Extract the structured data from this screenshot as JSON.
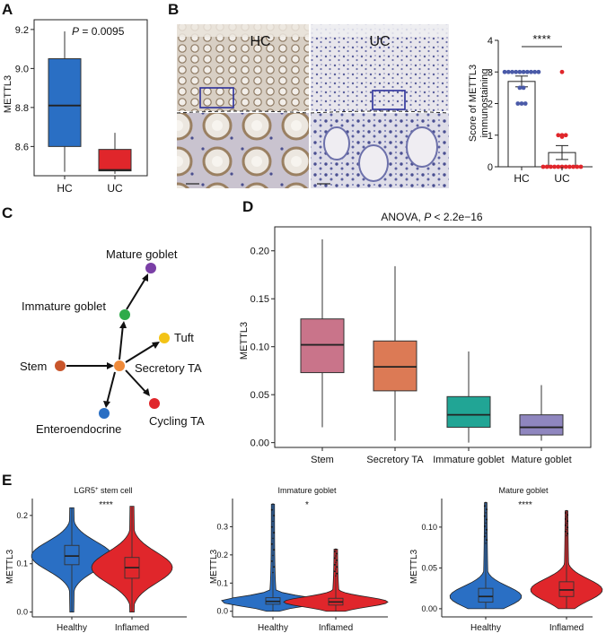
{
  "panels": {
    "A": {
      "label": "A",
      "pvalue_prefix": "P",
      "pvalue_rest": " = 0.0095",
      "ylabel": "METTL3",
      "yticks": [
        "8.6",
        "8.8",
        "9.0",
        "9.2"
      ],
      "categories": [
        "HC",
        "UC"
      ],
      "colors": [
        "#2a6fc4",
        "#e0262b"
      ]
    },
    "B": {
      "label": "B",
      "img_titles": [
        "HC",
        "UC"
      ],
      "ylabel_line1": "Score of METTL3",
      "ylabel_line2": "immunostaining",
      "yticks": [
        "0",
        "1",
        "2",
        "3",
        "4"
      ],
      "categories": [
        "HC",
        "UC"
      ],
      "significance": "****",
      "dot_colors": [
        "#4a5aa8",
        "#e0262b"
      ]
    },
    "C": {
      "label": "C",
      "nodes": [
        {
          "name": "Stem",
          "color": "#c8552b"
        },
        {
          "name": "Secretory TA",
          "color": "#ef8a3a"
        },
        {
          "name": "Immature goblet",
          "color": "#2eab4a"
        },
        {
          "name": "Mature goblet",
          "color": "#7a3fa6"
        },
        {
          "name": "Tuft",
          "color": "#f3c316"
        },
        {
          "name": "Cycling TA",
          "color": "#e0262b"
        },
        {
          "name": "Enteroendocrine",
          "color": "#2a6fc4"
        }
      ]
    },
    "D": {
      "label": "D",
      "anova_prefix": "ANOVA, ",
      "anova_p": "P",
      "anova_rest": " < 2.2e−16",
      "ylabel": "METTL3",
      "yticks": [
        "0.00",
        "0.05",
        "0.10",
        "0.15",
        "0.20"
      ],
      "categories": [
        "Stem",
        "Secretory TA",
        "Immature goblet",
        "Mature goblet"
      ],
      "colors": [
        "#c9748a",
        "#dc7a55",
        "#21a595",
        "#8f86bf"
      ]
    },
    "E": {
      "label": "E",
      "ylabel": "METTL3",
      "groups": [
        "Healthy",
        "Inflamed"
      ],
      "colors": [
        "#2a6fc4",
        "#e0262b"
      ],
      "subpanels": [
        {
          "title": "LGR5",
          "title_sup": "+",
          "title_rest": " stem cell",
          "sig": "****",
          "yticks": [
            "0.0",
            "0.1",
            "0.2"
          ]
        },
        {
          "title": "Immature goblet",
          "title_sup": "",
          "title_rest": "",
          "sig": "*",
          "yticks": [
            "0.0",
            "0.1",
            "0.2",
            "0.3"
          ]
        },
        {
          "title": "Mature goblet",
          "title_sup": "",
          "title_rest": "",
          "sig": "****",
          "yticks": [
            "0.00",
            "0.05",
            "0.10"
          ]
        }
      ]
    }
  },
  "chart_data": [
    {
      "type": "box",
      "panel": "A",
      "categories": [
        "HC",
        "UC"
      ],
      "boxes": [
        {
          "min": 8.47,
          "q1": 8.6,
          "median": 8.81,
          "q3": 9.05,
          "max": 9.19
        },
        {
          "min": 8.46,
          "q1": 8.475,
          "median": 8.48,
          "q3": 8.585,
          "max": 8.67
        }
      ],
      "ylabel": "METTL3",
      "ylim": [
        8.45,
        9.25
      ],
      "annotation": "P = 0.0095"
    },
    {
      "type": "bar",
      "panel": "B",
      "categories": [
        "HC",
        "UC"
      ],
      "values": [
        2.7,
        0.45
      ],
      "errors": [
        0.17,
        0.22
      ],
      "points": [
        [
          3,
          3,
          3,
          3,
          3,
          3,
          3,
          3,
          3,
          3,
          2.5,
          2.5,
          2,
          2,
          2
        ],
        [
          3,
          1,
          1,
          1,
          0.95,
          0,
          0,
          0,
          0,
          0,
          0,
          0,
          0,
          0,
          0,
          0
        ]
      ],
      "ylabel": "Score of METTL3 immunostaining",
      "ylim": [
        0,
        4
      ],
      "annotation": "****"
    },
    {
      "type": "box",
      "panel": "D",
      "categories": [
        "Stem",
        "Secretory TA",
        "Immature goblet",
        "Mature goblet"
      ],
      "boxes": [
        {
          "min": 0.016,
          "q1": 0.073,
          "median": 0.102,
          "q3": 0.129,
          "max": 0.212
        },
        {
          "min": 0.002,
          "q1": 0.054,
          "median": 0.079,
          "q3": 0.106,
          "max": 0.184
        },
        {
          "min": 0.0,
          "q1": 0.016,
          "median": 0.029,
          "q3": 0.048,
          "max": 0.095
        },
        {
          "min": 0.002,
          "q1": 0.008,
          "median": 0.016,
          "q3": 0.029,
          "max": 0.06
        }
      ],
      "ylabel": "METTL3",
      "ylim": [
        -0.005,
        0.225
      ],
      "title": "ANOVA, P < 2.2e−16"
    },
    {
      "type": "violin",
      "panel": "E1",
      "title": "LGR5+ stem cell",
      "categories": [
        "Healthy",
        "Inflamed"
      ],
      "boxes": [
        {
          "min": 0.0,
          "q1": 0.098,
          "median": 0.116,
          "q3": 0.138,
          "max": 0.216
        },
        {
          "min": 0.0,
          "q1": 0.07,
          "median": 0.092,
          "q3": 0.113,
          "max": 0.219
        }
      ],
      "ylabel": "METTL3",
      "ylim": [
        -0.01,
        0.235
      ],
      "annotation": "****"
    },
    {
      "type": "violin",
      "panel": "E2",
      "title": "Immature goblet",
      "categories": [
        "Healthy",
        "Inflamed"
      ],
      "boxes": [
        {
          "min": 0.0,
          "q1": 0.025,
          "median": 0.035,
          "q3": 0.048,
          "max": 0.38
        },
        {
          "min": 0.0,
          "q1": 0.022,
          "median": 0.033,
          "q3": 0.046,
          "max": 0.22
        }
      ],
      "ylabel": "METTL3",
      "ylim": [
        -0.02,
        0.4
      ],
      "annotation": "*"
    },
    {
      "type": "violin",
      "panel": "E3",
      "title": "Mature goblet",
      "categories": [
        "Healthy",
        "Inflamed"
      ],
      "boxes": [
        {
          "min": 0.0,
          "q1": 0.008,
          "median": 0.015,
          "q3": 0.025,
          "max": 0.13
        },
        {
          "min": 0.0,
          "q1": 0.015,
          "median": 0.023,
          "q3": 0.033,
          "max": 0.12
        }
      ],
      "ylabel": "METTL3",
      "ylim": [
        -0.01,
        0.135
      ],
      "annotation": "****"
    }
  ]
}
